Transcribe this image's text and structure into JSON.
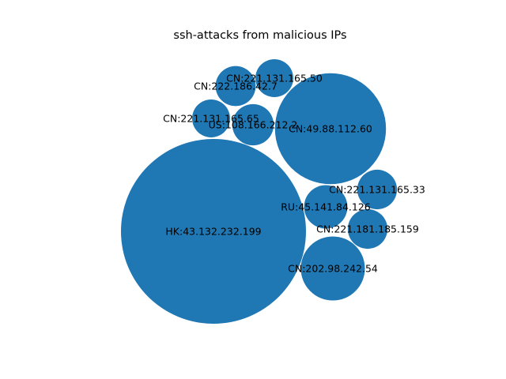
{
  "chart_data": {
    "type": "bubble",
    "title": "ssh-attacks from malicious IPs",
    "bubble_color": "#1f77b4",
    "bubbles": [
      {
        "label": "HK:43.132.232.199",
        "value": 100
      },
      {
        "label": "CN:49.88.112.60",
        "value": 36
      },
      {
        "label": "CN:202.98.242.54",
        "value": 12
      },
      {
        "label": "RU:45.141.84.126",
        "value": 5.5
      },
      {
        "label": "US:108.166.212.2",
        "value": 5
      },
      {
        "label": "CN:222.186.42.7",
        "value": 4.7
      },
      {
        "label": "CN:221.131.165.33",
        "value": 4.6
      },
      {
        "label": "CN:221.181.185.159",
        "value": 4.6
      },
      {
        "label": "CN:221.131.165.50",
        "value": 4.2
      },
      {
        "label": "CN:221.131.165.65",
        "value": 4.2
      }
    ]
  }
}
